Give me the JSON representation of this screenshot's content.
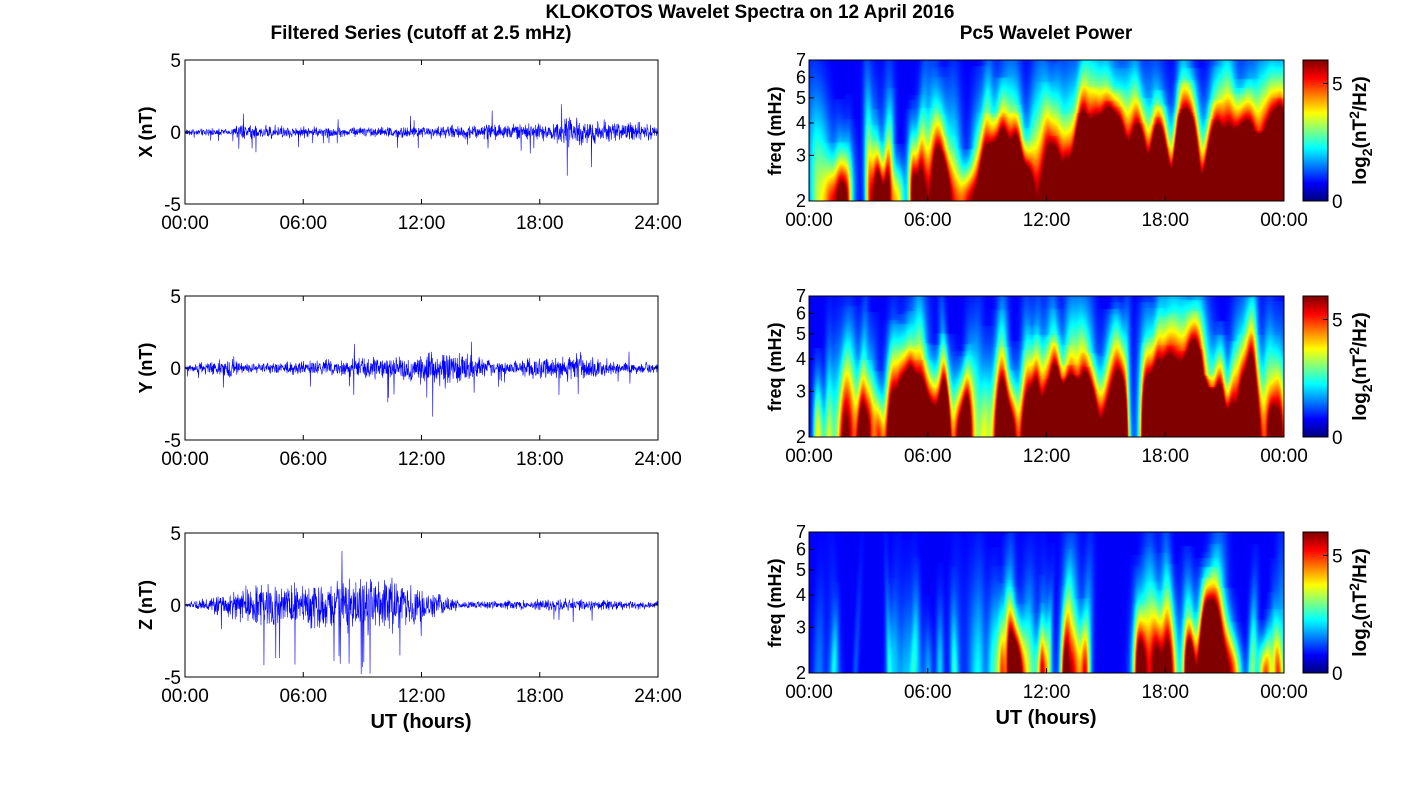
{
  "figure": {
    "suptitle": "KLOKOTOS Wavelet Spectra on 12 April 2016",
    "left_title": "Filtered Series (cutoff at 2.5 mHz)",
    "right_title": "Pc5 Wavelet Power"
  },
  "chart_data": [
    {
      "type": "line",
      "id": "x-series",
      "ylabel": "X (nT)",
      "xlabel": "",
      "xlim": [
        0,
        24
      ],
      "ylim": [
        -5,
        5
      ],
      "xticks": [
        "00:00",
        "06:00",
        "12:00",
        "18:00",
        "24:00"
      ],
      "yticks": [
        "5",
        "0",
        "-5"
      ],
      "color": "#0000ff",
      "envelope": [
        {
          "t": 0,
          "amp": 0.25
        },
        {
          "t": 2.4,
          "amp": 0.3
        },
        {
          "t": 2.6,
          "amp": 0.6
        },
        {
          "t": 8,
          "amp": 0.4
        },
        {
          "t": 12,
          "amp": 0.5
        },
        {
          "t": 15,
          "amp": 0.6
        },
        {
          "t": 18.2,
          "amp": 0.7
        },
        {
          "t": 19.5,
          "amp": 1.3
        },
        {
          "t": 21,
          "amp": 1.0
        },
        {
          "t": 24,
          "amp": 0.6
        }
      ]
    },
    {
      "type": "line",
      "id": "y-series",
      "ylabel": "Y (nT)",
      "xlabel": "",
      "xlim": [
        0,
        24
      ],
      "ylim": [
        -5,
        5
      ],
      "xticks": [
        "00:00",
        "06:00",
        "12:00",
        "18:00",
        "24:00"
      ],
      "yticks": [
        "5",
        "0",
        "-5"
      ],
      "color": "#0000ff",
      "envelope": [
        {
          "t": 0,
          "amp": 0.2
        },
        {
          "t": 2.5,
          "amp": 0.9
        },
        {
          "t": 3,
          "amp": 0.35
        },
        {
          "t": 10,
          "amp": 0.9
        },
        {
          "t": 13.3,
          "amp": 1.5
        },
        {
          "t": 16,
          "amp": 0.5
        },
        {
          "t": 20.1,
          "amp": 1.2
        },
        {
          "t": 22,
          "amp": 0.5
        },
        {
          "t": 24,
          "amp": 0.4
        }
      ]
    },
    {
      "type": "line",
      "id": "z-series",
      "ylabel": "Z (nT)",
      "xlabel": "UT (hours)",
      "xlim": [
        0,
        24
      ],
      "ylim": [
        -5,
        5
      ],
      "xticks": [
        "00:00",
        "06:00",
        "12:00",
        "18:00",
        "24:00"
      ],
      "yticks": [
        "5",
        "0",
        "-5"
      ],
      "color": "#0000ff",
      "envelope": [
        {
          "t": 0,
          "amp": 0.15
        },
        {
          "t": 4,
          "amp": 1.8
        },
        {
          "t": 10.5,
          "amp": 2.2
        },
        {
          "t": 14,
          "amp": 0.3
        },
        {
          "t": 19.5,
          "amp": 0.5
        },
        {
          "t": 24,
          "amp": 0.3
        }
      ]
    },
    {
      "type": "heatmap",
      "id": "x-wavelet",
      "ylabel": "freq (mHz)",
      "xlabel": "",
      "xlim": [
        0,
        24
      ],
      "ylim": [
        2,
        7
      ],
      "yscale": "log",
      "colormap": "jet",
      "xticks": [
        "00:00",
        "06:00",
        "12:00",
        "18:00",
        "00:00"
      ],
      "yticks": [
        "7",
        "6",
        "5",
        "4",
        "3",
        "2"
      ],
      "colorbar_label": "log2(nT²/Hz)",
      "colorbar_ticks": [
        "5",
        "0"
      ],
      "clim": [
        0,
        6
      ],
      "activity": [
        {
          "t": 1,
          "a": 0.45
        },
        {
          "t": 3,
          "a": 0.5
        },
        {
          "t": 5.5,
          "a": 0.55
        },
        {
          "t": 7.5,
          "a": 0.5
        },
        {
          "t": 9,
          "a": 0.85
        },
        {
          "t": 11,
          "a": 0.6
        },
        {
          "t": 13,
          "a": 0.85
        },
        {
          "t": 15,
          "a": 0.95
        },
        {
          "t": 16.5,
          "a": 0.55
        },
        {
          "t": 18.5,
          "a": 1.0
        },
        {
          "t": 20.5,
          "a": 1.0
        },
        {
          "t": 22.5,
          "a": 0.9
        },
        {
          "t": 24,
          "a": 0.85
        }
      ]
    },
    {
      "type": "heatmap",
      "id": "y-wavelet",
      "ylabel": "freq (mHz)",
      "xlabel": "",
      "xlim": [
        0,
        24
      ],
      "ylim": [
        2,
        7
      ],
      "yscale": "log",
      "colormap": "jet",
      "xticks": [
        "00:00",
        "06:00",
        "12:00",
        "18:00",
        "00:00"
      ],
      "yticks": [
        "7",
        "6",
        "5",
        "4",
        "3",
        "2"
      ],
      "colorbar_label": "log2(nT²/Hz)",
      "colorbar_ticks": [
        "5",
        "0"
      ],
      "clim": [
        0,
        6
      ],
      "activity": [
        {
          "t": 1,
          "a": 0.35
        },
        {
          "t": 2.5,
          "a": 0.5
        },
        {
          "t": 5.3,
          "a": 0.85
        },
        {
          "t": 7.5,
          "a": 0.5
        },
        {
          "t": 9.7,
          "a": 1.0
        },
        {
          "t": 11,
          "a": 0.5
        },
        {
          "t": 12.5,
          "a": 0.85
        },
        {
          "t": 14.5,
          "a": 0.9
        },
        {
          "t": 16.5,
          "a": 0.4
        },
        {
          "t": 18.5,
          "a": 1.0
        },
        {
          "t": 20,
          "a": 1.0
        },
        {
          "t": 22,
          "a": 0.6
        },
        {
          "t": 24,
          "a": 0.45
        }
      ]
    },
    {
      "type": "heatmap",
      "id": "z-wavelet",
      "ylabel": "freq (mHz)",
      "xlabel": "UT (hours)",
      "xlim": [
        0,
        24
      ],
      "ylim": [
        2,
        7
      ],
      "yscale": "log",
      "colormap": "jet",
      "xticks": [
        "00:00",
        "06:00",
        "12:00",
        "18:00",
        "00:00"
      ],
      "yticks": [
        "7",
        "6",
        "5",
        "4",
        "3",
        "2"
      ],
      "colorbar_label": "log2(nT²/Hz)",
      "colorbar_ticks": [
        "5",
        "0"
      ],
      "clim": [
        0,
        6
      ],
      "activity": [
        {
          "t": 1,
          "a": 0.15
        },
        {
          "t": 3,
          "a": 0.15
        },
        {
          "t": 8,
          "a": 0.25
        },
        {
          "t": 9.8,
          "a": 0.35
        },
        {
          "t": 12.5,
          "a": 0.35
        },
        {
          "t": 14.8,
          "a": 0.45
        },
        {
          "t": 17,
          "a": 0.35
        },
        {
          "t": 19.3,
          "a": 0.8
        },
        {
          "t": 21.5,
          "a": 0.45
        },
        {
          "t": 23.3,
          "a": 0.4
        },
        {
          "t": 24,
          "a": 0.3
        }
      ]
    }
  ]
}
